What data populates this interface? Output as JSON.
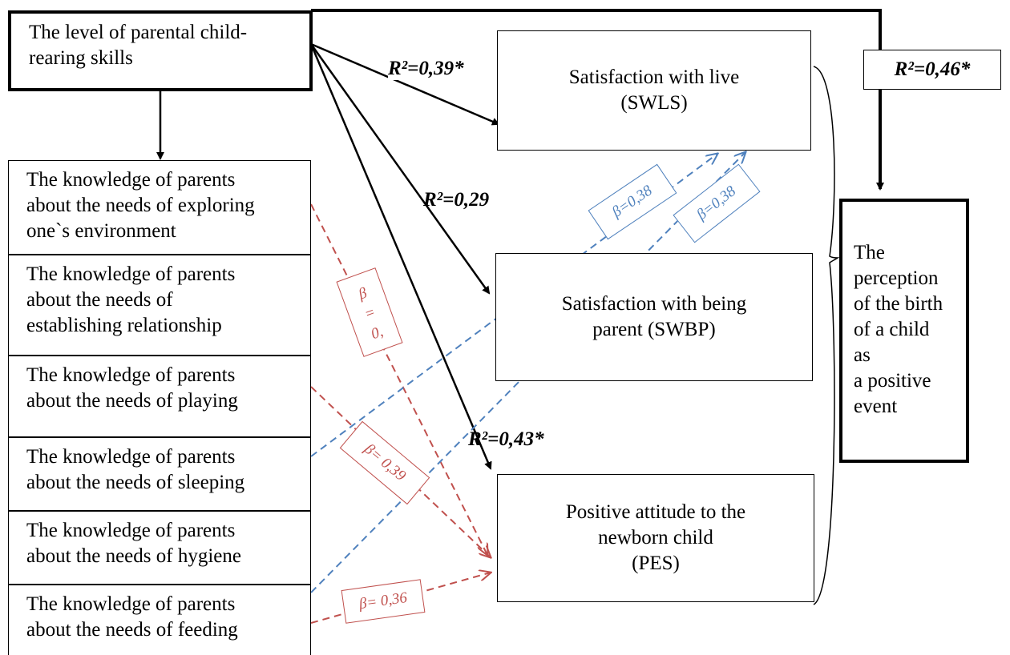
{
  "source_box": {
    "line1": "The level of parental child-",
    "line2": "rearing skills"
  },
  "knowledge_boxes": [
    {
      "line1": "The knowledge of parents",
      "line2": "about the needs of exploring",
      "line3": "one`s environment"
    },
    {
      "line1": "The knowledge of parents",
      "line2": "about the needs of",
      "line3": "establishing relationship"
    },
    {
      "line1": "The knowledge of parents",
      "line2": "about the needs of playing"
    },
    {
      "line1": "The knowledge of parents",
      "line2": "about the needs of sleeping"
    },
    {
      "line1": "The knowledge of parents",
      "line2": "about the needs of hygiene"
    },
    {
      "line1": "The knowledge of parents",
      "line2": "about the needs of feeding"
    }
  ],
  "outcome_boxes": {
    "swls": {
      "line1": "Satisfaction with live",
      "line2": "(SWLS)"
    },
    "swbp": {
      "line1": "Satisfaction with being",
      "line2": "parent (SWBP)"
    },
    "pes": {
      "line1": "Positive attitude to the",
      "line2": "newborn child",
      "line3": "(PES)"
    }
  },
  "perception_box": {
    "lines": [
      "The",
      "perception",
      "of the birth",
      "of a child",
      "as",
      "a positive",
      "event"
    ]
  },
  "r2_labels": {
    "swls": "R²=0,39*",
    "swbp": "R²=0,29",
    "pes": "R²=0,43*",
    "perception": "R²=0,46*"
  },
  "beta_labels": {
    "blue_1": "β=0,38",
    "blue_2": "β=0,38",
    "red_vertical": {
      "l1": "β",
      "l2": "=",
      "l3": "0,"
    },
    "red_playing": "β= 0,39",
    "red_feeding": "β= 0,36"
  },
  "colors": {
    "black": "#000000",
    "red_dashed": "#c0504d",
    "blue_dashed": "#4f81bd"
  }
}
